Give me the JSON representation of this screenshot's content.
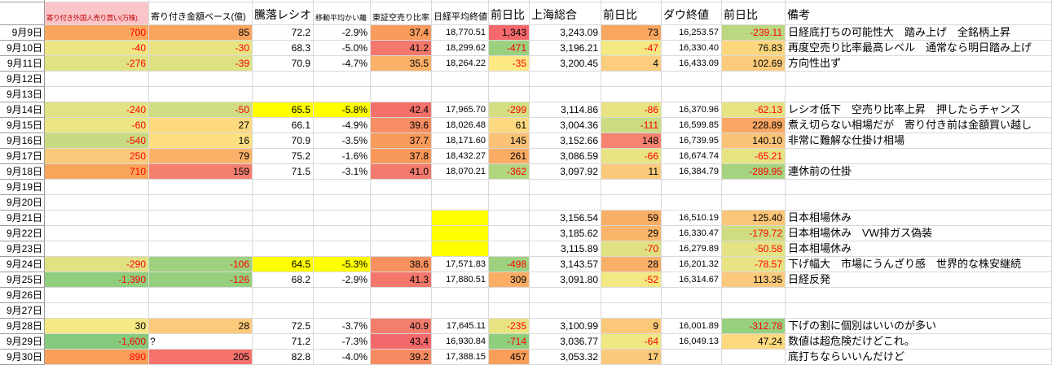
{
  "table": {
    "columns": [
      {
        "key": "date",
        "label": ""
      },
      {
        "key": "foreign_shares",
        "label": "寄り付き外国人売り買い(万株)",
        "bg": "#F9C5C9",
        "fg": "#C00000"
      },
      {
        "key": "amount_base",
        "label": "寄り付き金額ベース(億)"
      },
      {
        "key": "updown_ratio",
        "label": "騰落レシオ"
      },
      {
        "key": "ma_deviation",
        "label": "移動平均かい離"
      },
      {
        "key": "short_ratio",
        "label": "東証空売り比率"
      },
      {
        "key": "nikkei_close",
        "label": "日経平均終値"
      },
      {
        "key": "nikkei_chg",
        "label": "前日比"
      },
      {
        "key": "shanghai_close",
        "label": "上海総合"
      },
      {
        "key": "shanghai_chg",
        "label": "前日比"
      },
      {
        "key": "dow_close",
        "label": "ダウ終値"
      },
      {
        "key": "dow_chg",
        "label": "前日比"
      },
      {
        "key": "remark",
        "label": "備考"
      }
    ],
    "rows": [
      {
        "date": "9月9日",
        "cells": [
          {
            "v": "700",
            "bg": "#F9A55C",
            "fg": "#FF0000"
          },
          {
            "v": "85",
            "bg": "#F9A55E"
          },
          {
            "v": "72.2"
          },
          {
            "v": "-2.9%"
          },
          {
            "v": "37.4",
            "bg": "#F89B5D"
          },
          {
            "v": "18,770.51"
          },
          {
            "v": "1,343",
            "bg": "#F4696B"
          },
          {
            "v": "3,243.09"
          },
          {
            "v": "73",
            "bg": "#F9A660"
          },
          {
            "v": "16,253.57"
          },
          {
            "v": "-239.11",
            "bg": "#BBD780",
            "fg": "#FF0000"
          }
        ],
        "remark": "日経底打ちの可能性大　踏み上げ　全銘柄上昇"
      },
      {
        "date": "9月10日",
        "cells": [
          {
            "v": "-40",
            "bg": "#EDE684",
            "fg": "#FF0000"
          },
          {
            "v": "-30",
            "bg": "#E9E483",
            "fg": "#FF0000"
          },
          {
            "v": "68.3"
          },
          {
            "v": "-5.0%"
          },
          {
            "v": "41.2",
            "bg": "#F4786D"
          },
          {
            "v": "18,299.62"
          },
          {
            "v": "-471",
            "bg": "#9BD17E",
            "fg": "#FF0000"
          },
          {
            "v": "3,196.21"
          },
          {
            "v": "-47",
            "bg": "#F4E883",
            "fg": "#FF0000"
          },
          {
            "v": "16,330.40"
          },
          {
            "v": "76.83",
            "bg": "#FCD77E"
          }
        ],
        "remark": "再度空売り比率最高レベル　通常なら明日踏み上げ"
      },
      {
        "date": "9月11日",
        "cells": [
          {
            "v": "-276",
            "bg": "#E1E283",
            "fg": "#FF0000"
          },
          {
            "v": "-39",
            "bg": "#DEE182",
            "fg": "#FF0000"
          },
          {
            "v": "70.9"
          },
          {
            "v": "-4.7%"
          },
          {
            "v": "35.5",
            "bg": "#FBB168"
          },
          {
            "v": "18,264.22"
          },
          {
            "v": "-35",
            "bg": "#FCE983",
            "fg": "#FF0000"
          },
          {
            "v": "3,200.45"
          },
          {
            "v": "4",
            "bg": "#FBCD7C"
          },
          {
            "v": "16,433.09"
          },
          {
            "v": "102.69",
            "bg": "#FBCB7B"
          }
        ],
        "remark": "方向性出ず"
      },
      {
        "date": "9月12日",
        "cells": [
          null,
          null,
          null,
          null,
          null,
          null,
          null,
          null,
          null,
          null,
          null
        ],
        "remark": ""
      },
      {
        "date": "9月13日",
        "cells": [
          null,
          null,
          null,
          null,
          null,
          null,
          null,
          null,
          null,
          null,
          null
        ],
        "remark": ""
      },
      {
        "date": "9月14日",
        "cells": [
          {
            "v": "-240",
            "bg": "#E3E283",
            "fg": "#FF0000"
          },
          {
            "v": "-50",
            "bg": "#CFDC81",
            "fg": "#FF0000"
          },
          {
            "v": "65.5",
            "bg": "#FFFF00"
          },
          {
            "v": "-5.8%",
            "bg": "#FFFF00"
          },
          {
            "v": "42.4",
            "bg": "#F4706B"
          },
          {
            "v": "17,965.70"
          },
          {
            "v": "-299",
            "bg": "#D5DE82",
            "fg": "#FF0000"
          },
          {
            "v": "3,114.86"
          },
          {
            "v": "-86",
            "bg": "#E8E483",
            "fg": "#FF0000"
          },
          {
            "v": "16,370.96"
          },
          {
            "v": "-62.13",
            "bg": "#E6E383",
            "fg": "#FF0000"
          }
        ],
        "remark": "レシオ低下　空売り比率上昇　押したらチャンス"
      },
      {
        "date": "9月15日",
        "cells": [
          {
            "v": "-60",
            "bg": "#EBE584",
            "fg": "#FF0000"
          },
          {
            "v": "27",
            "bg": "#FCD87E"
          },
          {
            "v": "66.1"
          },
          {
            "v": "-4.9%"
          },
          {
            "v": "39.6",
            "bg": "#F78D62"
          },
          {
            "v": "18,026.48"
          },
          {
            "v": "61",
            "bg": "#FCD97F"
          },
          {
            "v": "3,004.36"
          },
          {
            "v": "-111",
            "bg": "#CBDB81",
            "fg": "#FF0000"
          },
          {
            "v": "16,599.85"
          },
          {
            "v": "228.89",
            "bg": "#F9A763"
          }
        ],
        "remark": "煮え切らない相場だが　寄り付き前は金額買い越し"
      },
      {
        "date": "9月16日",
        "cells": [
          {
            "v": "-540",
            "bg": "#C8DA81",
            "fg": "#FF0000"
          },
          {
            "v": "16",
            "bg": "#FDDF80"
          },
          {
            "v": "70.9"
          },
          {
            "v": "-3.5%"
          },
          {
            "v": "37.7",
            "bg": "#F89A5C"
          },
          {
            "v": "18,171.60"
          },
          {
            "v": "145",
            "bg": "#FBC276"
          },
          {
            "v": "3,152.66"
          },
          {
            "v": "148",
            "bg": "#F5836F"
          },
          {
            "v": "16,739.95"
          },
          {
            "v": "140.10",
            "bg": "#FBC377"
          }
        ],
        "remark": "非常に難解な仕掛け相場"
      },
      {
        "date": "9月17日",
        "cells": [
          {
            "v": "250",
            "bg": "#FBC97B",
            "fg": "#FF0000"
          },
          {
            "v": "79",
            "bg": "#FAB269"
          },
          {
            "v": "75.2"
          },
          {
            "v": "-1.6%"
          },
          {
            "v": "37.8",
            "bg": "#F8985B"
          },
          {
            "v": "18,432.27"
          },
          {
            "v": "261",
            "bg": "#FAAC64"
          },
          {
            "v": "3,086.59"
          },
          {
            "v": "-66",
            "bg": "#E9E483",
            "fg": "#FF0000"
          },
          {
            "v": "16,674.74"
          },
          {
            "v": "-65.21",
            "bg": "#E6E383",
            "fg": "#FF0000"
          }
        ],
        "remark": ""
      },
      {
        "date": "9月18日",
        "cells": [
          {
            "v": "710",
            "bg": "#F9A45B",
            "fg": "#FF0000"
          },
          {
            "v": "159",
            "bg": "#F47F6E"
          },
          {
            "v": "71.5"
          },
          {
            "v": "-3.1%"
          },
          {
            "v": "41.0",
            "bg": "#F47A6E"
          },
          {
            "v": "18,070.21"
          },
          {
            "v": "-362",
            "bg": "#B2D57F",
            "fg": "#FF0000"
          },
          {
            "v": "3,097.92"
          },
          {
            "v": "11",
            "bg": "#FBC97B"
          },
          {
            "v": "16,384.79"
          },
          {
            "v": "-289.95",
            "bg": "#A5D37F",
            "fg": "#FF0000"
          }
        ],
        "remark": "連休前の仕掛"
      },
      {
        "date": "9月19日",
        "cells": [
          null,
          null,
          null,
          null,
          null,
          null,
          null,
          null,
          null,
          null,
          null
        ],
        "remark": ""
      },
      {
        "date": "9月20日",
        "cells": [
          null,
          null,
          null,
          null,
          null,
          null,
          null,
          null,
          null,
          null,
          null
        ],
        "remark": ""
      },
      {
        "date": "9月21日",
        "cells": [
          null,
          null,
          null,
          null,
          null,
          {
            "v": "",
            "bg": "#FFFF00"
          },
          null,
          {
            "v": "3,156.54"
          },
          {
            "v": "59",
            "bg": "#F9AE65"
          },
          {
            "v": "16,510.19"
          },
          {
            "v": "125.40",
            "bg": "#FBC577"
          }
        ],
        "remark": "日本相場休み"
      },
      {
        "date": "9月22日",
        "cells": [
          null,
          null,
          null,
          null,
          null,
          {
            "v": "",
            "bg": "#FFFF00"
          },
          null,
          {
            "v": "3,185.62"
          },
          {
            "v": "29",
            "bg": "#FAB56B"
          },
          {
            "v": "16,330.47"
          },
          {
            "v": "-179.72",
            "bg": "#CFDC81",
            "fg": "#FF0000"
          }
        ],
        "remark": "日本相場休み　VW排ガス偽装"
      },
      {
        "date": "9月23日",
        "cells": [
          null,
          null,
          null,
          null,
          null,
          {
            "v": "",
            "bg": "#FFFF00"
          },
          null,
          {
            "v": "3,115.89"
          },
          {
            "v": "-70",
            "bg": "#DFE182",
            "fg": "#FF0000"
          },
          {
            "v": "16,279.89"
          },
          {
            "v": "-50.58",
            "bg": "#E4E383",
            "fg": "#FF0000"
          }
        ],
        "remark": "日本相場休み"
      },
      {
        "date": "9月24日",
        "cells": [
          {
            "v": "-290",
            "bg": "#E0E183",
            "fg": "#FF0000"
          },
          {
            "v": "-106",
            "bg": "#9DD17E",
            "fg": "#FF0000"
          },
          {
            "v": "64.5",
            "bg": "#FFFF00"
          },
          {
            "v": "-5.3%",
            "bg": "#FFFF00"
          },
          {
            "v": "38.6",
            "bg": "#F79160"
          },
          {
            "v": "17,571.83"
          },
          {
            "v": "-498",
            "bg": "#9DD17E",
            "fg": "#FF0000"
          },
          {
            "v": "3,143.57"
          },
          {
            "v": "28",
            "bg": "#FAAF66"
          },
          {
            "v": "16,201.32"
          },
          {
            "v": "-78.57",
            "bg": "#E7E383",
            "fg": "#FF0000"
          }
        ],
        "remark": "下げ幅大　市場にうんざり感　世界的な株安継続"
      },
      {
        "date": "9月25日",
        "cells": [
          {
            "v": "-1,390",
            "bg": "#90CE7D",
            "fg": "#FF0000"
          },
          {
            "v": "-126",
            "bg": "#93CF7D",
            "fg": "#FF0000"
          },
          {
            "v": "68.2"
          },
          {
            "v": "-2.9%"
          },
          {
            "v": "41.3",
            "bg": "#F4776C"
          },
          {
            "v": "17,880.51"
          },
          {
            "v": "309",
            "bg": "#FAAD65"
          },
          {
            "v": "3,091.80"
          },
          {
            "v": "-52",
            "bg": "#F2E884",
            "fg": "#FF0000"
          },
          {
            "v": "16,314.67"
          },
          {
            "v": "113.35",
            "bg": "#FBC97B"
          }
        ],
        "remark": "日経反発"
      },
      {
        "date": "9月26日",
        "cells": [
          null,
          null,
          null,
          null,
          null,
          null,
          null,
          null,
          null,
          null,
          null
        ],
        "remark": ""
      },
      {
        "date": "9月27日",
        "cells": [
          null,
          null,
          null,
          null,
          null,
          null,
          null,
          null,
          null,
          null,
          null
        ],
        "remark": ""
      },
      {
        "date": "9月28日",
        "cells": [
          {
            "v": "30",
            "bg": "#F5E884"
          },
          {
            "v": "28",
            "bg": "#FBCA7B"
          },
          {
            "v": "72.5"
          },
          {
            "v": "-3.7%"
          },
          {
            "v": "40.9",
            "bg": "#F47E6E"
          },
          {
            "v": "17,645.11"
          },
          {
            "v": "-235",
            "bg": "#E8E483",
            "fg": "#FF0000"
          },
          {
            "v": "3,100.99"
          },
          {
            "v": "9",
            "bg": "#FBC87A"
          },
          {
            "v": "16,001.89"
          },
          {
            "v": "-312.78",
            "bg": "#97D07E",
            "fg": "#FF0000"
          }
        ],
        "remark": "下げの割に個別はいいのが多い"
      },
      {
        "date": "9月29日",
        "cells": [
          {
            "v": "-1,600",
            "bg": "#84CA7C",
            "fg": "#FF0000"
          },
          {
            "v": "?",
            "align": "left"
          },
          {
            "v": "71.2"
          },
          {
            "v": "-7.3%"
          },
          {
            "v": "43.4",
            "bg": "#F4696B"
          },
          {
            "v": "16,930.84"
          },
          {
            "v": "-714",
            "bg": "#8FCE7D",
            "fg": "#FF0000"
          },
          {
            "v": "3,036.77"
          },
          {
            "v": "-64",
            "bg": "#EFE783",
            "fg": "#FF0000"
          },
          {
            "v": "16,049.13"
          },
          {
            "v": "47.24",
            "bg": "#FCD97E"
          }
        ],
        "remark": "数値は超危険だけどこれ。"
      },
      {
        "date": "9月30日",
        "cells": [
          {
            "v": "890",
            "bg": "#F99E58",
            "fg": "#FF0000"
          },
          {
            "v": "205",
            "bg": "#F4716C"
          },
          {
            "v": "82.8"
          },
          {
            "v": "-4.0%"
          },
          {
            "v": "39.2",
            "bg": "#F78A61"
          },
          {
            "v": "17,388.15"
          },
          {
            "v": "457",
            "bg": "#F99E58"
          },
          {
            "v": "3,053.32"
          },
          {
            "v": "17",
            "bg": "#FBC97B"
          },
          null,
          null
        ],
        "remark": "底打ちならいいんだけど"
      }
    ]
  },
  "colors": {
    "highlight_yellow": "#FFFF00",
    "negative_text": "#FF0000",
    "header_flag_bg": "#F9C5C9",
    "header_flag_text": "#C00000"
  }
}
